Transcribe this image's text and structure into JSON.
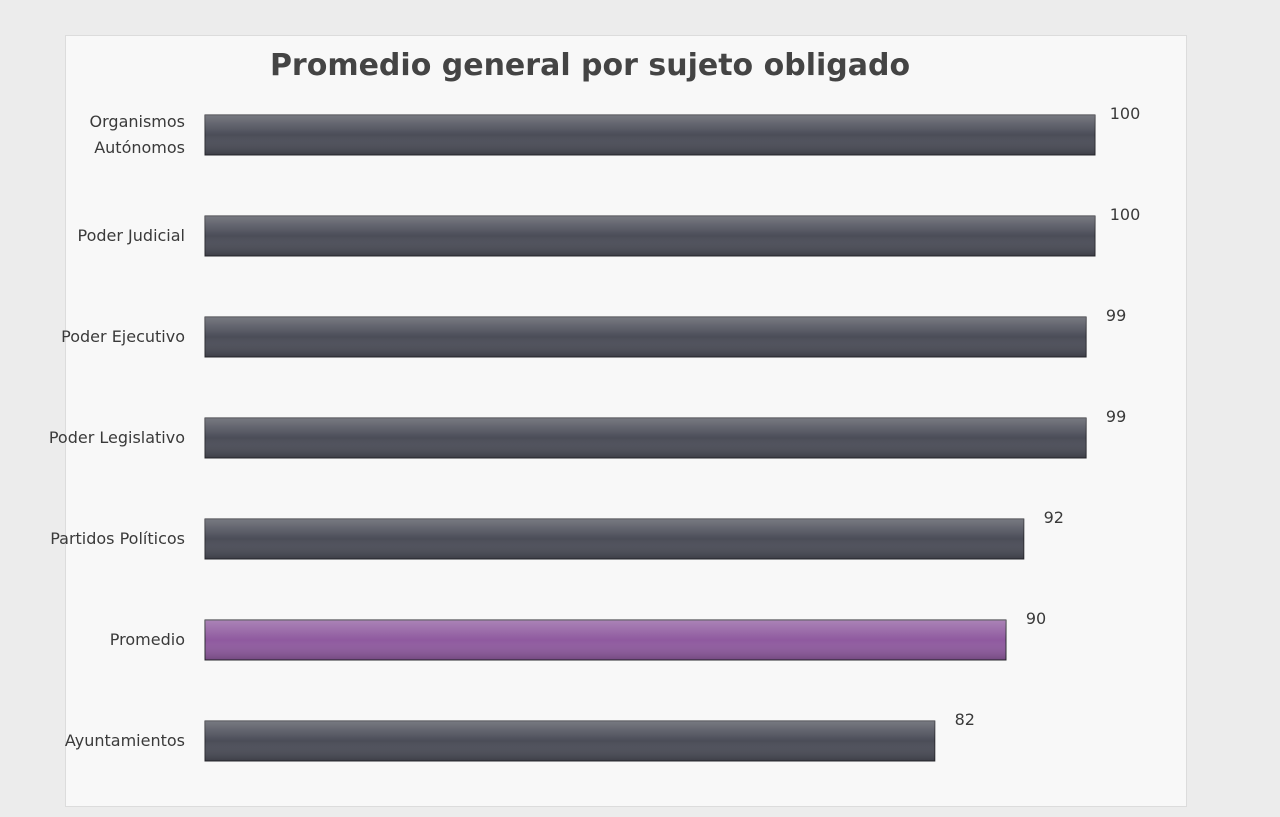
{
  "chart_data": {
    "type": "hbar",
    "title": "Promedio general por sujeto obligado",
    "categories": [
      "Organismos Autónomos",
      "Poder Judicial",
      "Poder Ejecutivo",
      "Poder Legislativo",
      "Partidos Políticos",
      "Promedio",
      "Ayuntamientos"
    ],
    "values": [
      100,
      100,
      99,
      99,
      92,
      90,
      82
    ],
    "colors": [
      "#4b4d58",
      "#4b4d58",
      "#4b4d58",
      "#4b4d58",
      "#4b4d58",
      "#8f5a9f",
      "#4b4d58"
    ],
    "xlim": [
      0,
      100
    ]
  }
}
